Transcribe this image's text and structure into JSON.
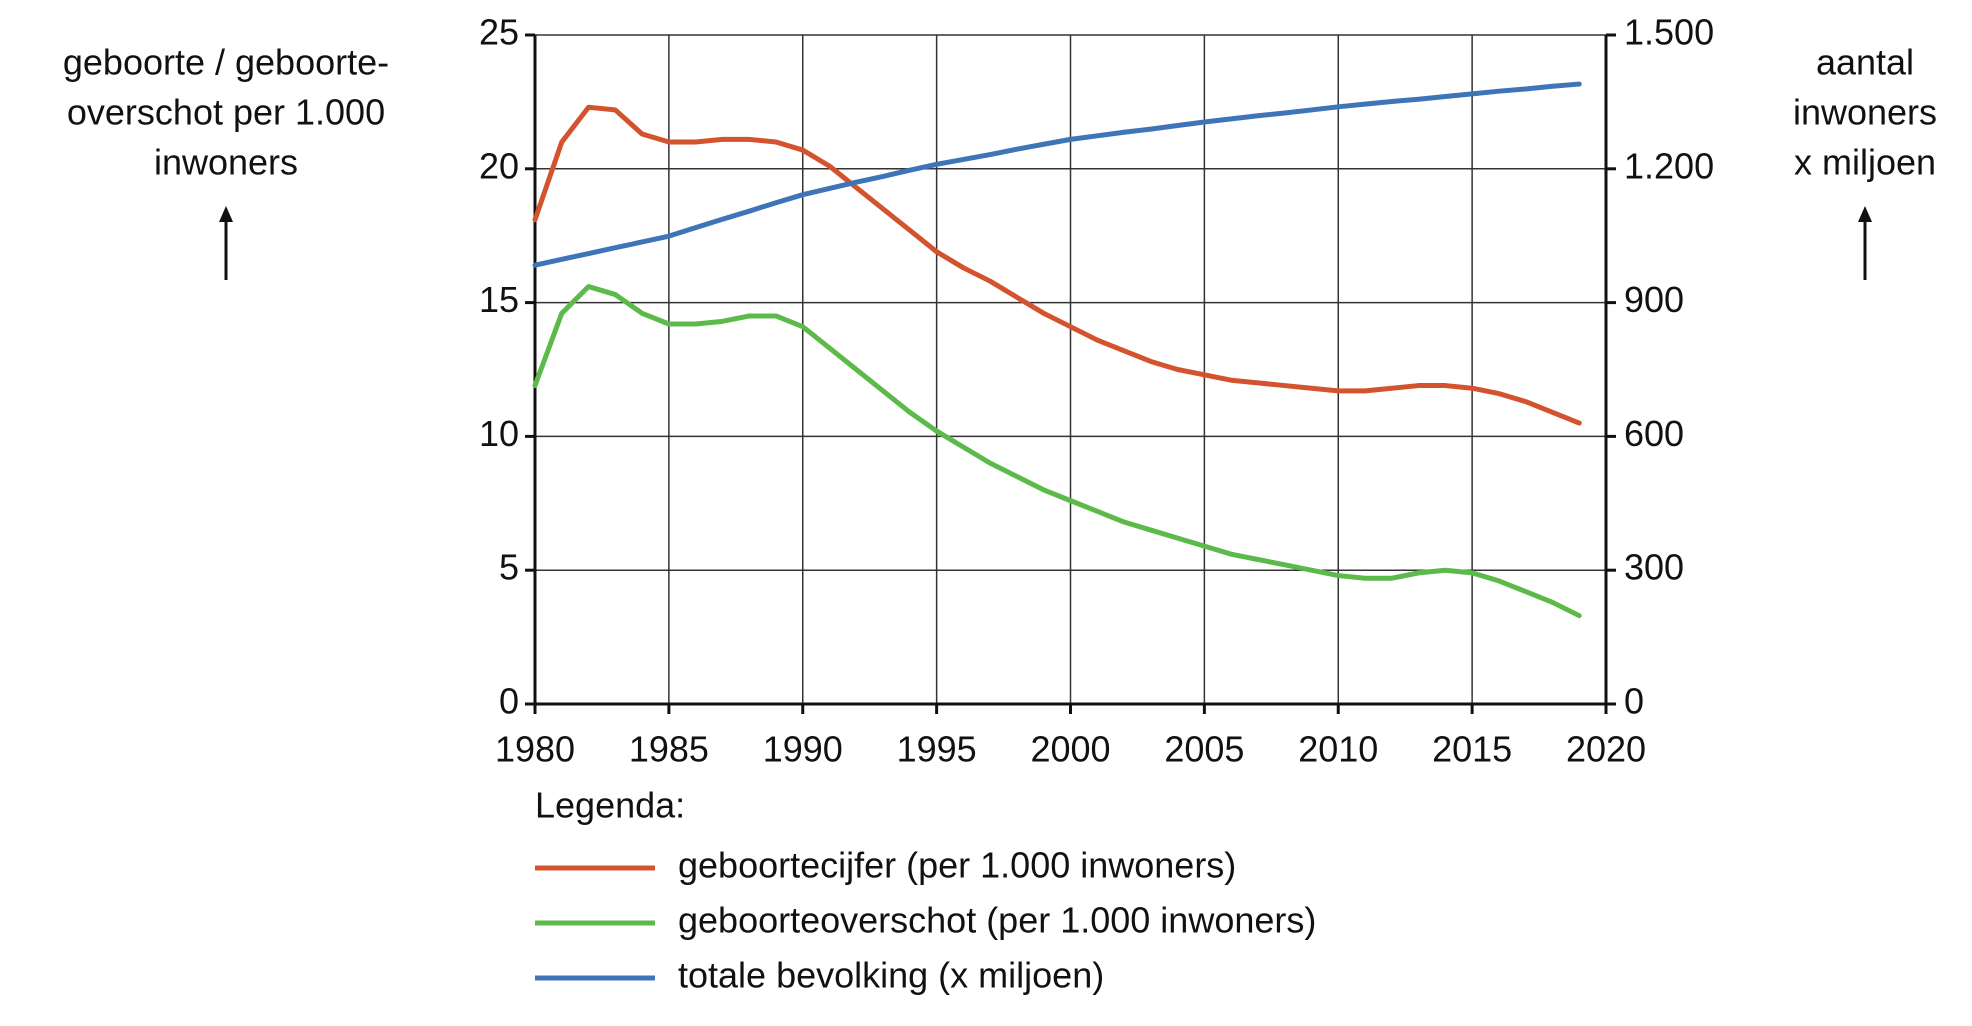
{
  "chart_data": {
    "type": "line",
    "x": [
      1980,
      1981,
      1982,
      1983,
      1984,
      1985,
      1986,
      1987,
      1988,
      1989,
      1990,
      1991,
      1992,
      1993,
      1994,
      1995,
      1996,
      1997,
      1998,
      1999,
      2000,
      2001,
      2002,
      2003,
      2004,
      2005,
      2006,
      2007,
      2008,
      2009,
      2010,
      2011,
      2012,
      2013,
      2014,
      2015,
      2016,
      2017,
      2018,
      2019
    ],
    "series": [
      {
        "name": "geboortecijfer (per 1.000 inwoners)",
        "color": "#d4532f",
        "values": [
          18.1,
          21.0,
          22.3,
          22.2,
          21.3,
          21.0,
          21.0,
          21.1,
          21.1,
          21.0,
          20.7,
          20.1,
          19.3,
          18.5,
          17.7,
          16.9,
          16.3,
          15.8,
          15.2,
          14.6,
          14.1,
          13.6,
          13.2,
          12.8,
          12.5,
          12.3,
          12.1,
          12.0,
          11.9,
          11.8,
          11.7,
          11.7,
          11.8,
          11.9,
          11.9,
          11.8,
          11.6,
          11.3,
          10.9,
          10.5
        ]
      },
      {
        "name": "geboorteoverschot (per 1.000 inwoners)",
        "color": "#5cba4a",
        "values": [
          11.9,
          14.6,
          15.6,
          15.3,
          14.6,
          14.2,
          14.2,
          14.3,
          14.5,
          14.5,
          14.1,
          13.3,
          12.5,
          11.7,
          10.9,
          10.2,
          9.6,
          9.0,
          8.5,
          8.0,
          7.6,
          7.2,
          6.8,
          6.5,
          6.2,
          5.9,
          5.6,
          5.4,
          5.2,
          5.0,
          4.8,
          4.7,
          4.7,
          4.9,
          5.0,
          4.9,
          4.6,
          4.2,
          3.8,
          3.3
        ]
      },
      {
        "name": "totale bevolking (x miljoen)",
        "color": "#3f74b8",
        "axis": "y2",
        "values": [
          984,
          997,
          1010,
          1023,
          1036,
          1049,
          1068,
          1087,
          1105,
          1124,
          1142,
          1156,
          1170,
          1183,
          1197,
          1210,
          1221,
          1232,
          1244,
          1255,
          1266,
          1274,
          1282,
          1289,
          1297,
          1305,
          1312,
          1319,
          1325,
          1332,
          1339,
          1345,
          1351,
          1356,
          1362,
          1368,
          1374,
          1379,
          1385,
          1390
        ]
      }
    ],
    "xlim": [
      1980,
      2020
    ],
    "xticks": [
      1980,
      1985,
      1990,
      1995,
      2000,
      2005,
      2010,
      2015,
      2020
    ],
    "ylim": [
      0,
      25
    ],
    "yticks": [
      0,
      5,
      10,
      15,
      20,
      25
    ],
    "y2lim": [
      0,
      1500
    ],
    "y2ticks": [
      0,
      300,
      600,
      900,
      {
        "value": 1200,
        "label": "1.200"
      },
      {
        "value": 1500,
        "label": "1.500"
      }
    ],
    "ylabel": [
      "geboorte / geboorte-",
      "overschot per 1.000",
      "inwoners"
    ],
    "y2label": [
      "aantal",
      "inwoners",
      "x miljoen"
    ],
    "legend_title": "Legenda:",
    "grid": true
  }
}
